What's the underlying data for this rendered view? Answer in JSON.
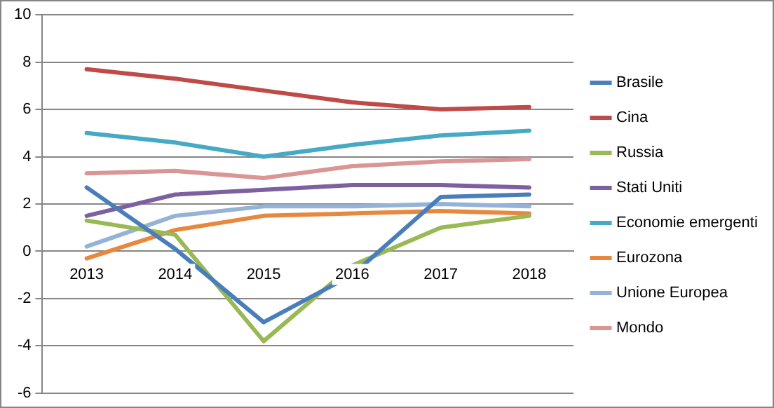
{
  "chart_data": {
    "type": "line",
    "categories": [
      "2013",
      "2014",
      "2015",
      "2016",
      "2017",
      "2018"
    ],
    "series": [
      {
        "name": "Brasile",
        "color": "#4a7ebb",
        "values": [
          2.7,
          0.1,
          -3.0,
          -1.0,
          2.3,
          2.4
        ]
      },
      {
        "name": "Cina",
        "color": "#be4b48",
        "values": [
          7.7,
          7.3,
          6.8,
          6.3,
          6.0,
          6.1
        ]
      },
      {
        "name": "Russia",
        "color": "#98b954",
        "values": [
          1.3,
          0.7,
          -3.8,
          -0.6,
          1.0,
          1.5
        ]
      },
      {
        "name": "Stati Uniti",
        "color": "#7d60a0",
        "values": [
          1.5,
          2.4,
          2.6,
          2.8,
          2.8,
          2.7
        ]
      },
      {
        "name": "Economie emergenti",
        "color": "#46aac5",
        "values": [
          5.0,
          4.6,
          4.0,
          4.5,
          4.9,
          5.1
        ]
      },
      {
        "name": "Eurozona",
        "color": "#e8873e",
        "values": [
          -0.3,
          0.9,
          1.5,
          1.6,
          1.7,
          1.6
        ]
      },
      {
        "name": "Unione Europea",
        "color": "#95b3d7",
        "values": [
          0.2,
          1.5,
          1.9,
          1.9,
          2.0,
          1.9
        ]
      },
      {
        "name": "Mondo",
        "color": "#d99694",
        "values": [
          3.3,
          3.4,
          3.1,
          3.6,
          3.8,
          3.9
        ]
      }
    ],
    "ylim": [
      -6,
      10
    ],
    "yticks": [
      -6,
      -4,
      -2,
      0,
      2,
      4,
      6,
      8,
      10
    ],
    "grid": "y",
    "legend": "right",
    "marker": "none",
    "line_style": "solid"
  }
}
